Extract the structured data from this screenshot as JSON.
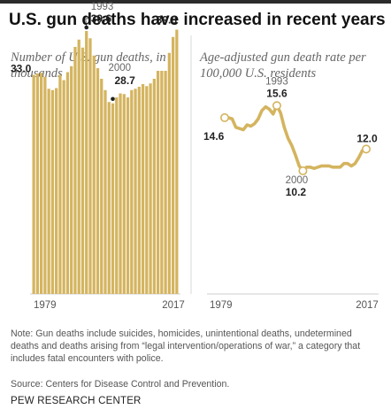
{
  "title": "U.S. gun deaths have increased in recent years",
  "note": "Note: Gun deaths include suicides, homicides, unintentional deaths, undetermined deaths and deaths arising from “legal intervention/operations of war,” a category that includes fatal encounters with police.",
  "source": "Source: Centers for Disease Control and Prevention.",
  "organization": "PEW RESEARCH CENTER",
  "colors": {
    "accent": "#d4b45f",
    "title": "#111111",
    "muted": "#666666"
  },
  "chart_data": [
    {
      "type": "bar",
      "subtitle": "Number of U.S. gun deaths, in thousands",
      "x": [
        1979,
        1980,
        1981,
        1982,
        1983,
        1984,
        1985,
        1986,
        1987,
        1988,
        1989,
        1990,
        1991,
        1992,
        1993,
        1994,
        1995,
        1996,
        1997,
        1998,
        1999,
        2000,
        2001,
        2002,
        2003,
        2004,
        2005,
        2006,
        2007,
        2008,
        2009,
        2010,
        2011,
        2012,
        2013,
        2014,
        2015,
        2016,
        2017
      ],
      "values": [
        33.0,
        33.2,
        33.3,
        32.7,
        30.9,
        30.7,
        31.0,
        33.0,
        32.2,
        33.4,
        34.3,
        37.2,
        38.3,
        37.1,
        39.6,
        38.5,
        35.9,
        34.0,
        32.4,
        30.7,
        28.9,
        28.7,
        29.6,
        30.2,
        30.1,
        29.6,
        30.7,
        30.9,
        31.2,
        31.6,
        31.3,
        31.7,
        32.4,
        33.6,
        33.6,
        33.6,
        36.3,
        38.7,
        39.8
      ],
      "xlim": [
        1979,
        2017
      ],
      "ylim": [
        0,
        40
      ],
      "tick_labels": [
        "1979",
        "2017"
      ],
      "annotations": [
        {
          "year": "",
          "label": "33.0",
          "x": 1979
        },
        {
          "year": "1993",
          "label": "39.6",
          "x": 1993
        },
        {
          "year": "2000",
          "label": "28.7",
          "x": 2000
        },
        {
          "year": "",
          "label": "39.8",
          "x": 2017
        }
      ]
    },
    {
      "type": "line",
      "subtitle": "Age-adjusted gun death rate per 100,000 U.S. residents",
      "x": [
        1979,
        1980,
        1981,
        1982,
        1983,
        1984,
        1985,
        1986,
        1987,
        1988,
        1989,
        1990,
        1991,
        1992,
        1993,
        1994,
        1995,
        1996,
        1997,
        1998,
        1999,
        2000,
        2001,
        2002,
        2003,
        2004,
        2005,
        2006,
        2007,
        2008,
        2009,
        2010,
        2011,
        2012,
        2013,
        2014,
        2015,
        2016,
        2017
      ],
      "values": [
        14.6,
        14.6,
        14.5,
        13.8,
        13.7,
        13.6,
        14.0,
        13.9,
        14.1,
        14.5,
        15.2,
        15.5,
        15.3,
        14.9,
        15.6,
        15.0,
        13.8,
        12.9,
        12.3,
        11.5,
        10.6,
        10.2,
        10.5,
        10.5,
        10.4,
        10.5,
        10.6,
        10.6,
        10.6,
        10.5,
        10.5,
        10.5,
        10.8,
        10.8,
        10.6,
        10.8,
        11.3,
        11.9,
        12.0
      ],
      "xlim": [
        1979,
        2017
      ],
      "ylim": [
        0,
        22
      ],
      "tick_labels": [
        "1979",
        "2017"
      ],
      "annotations": [
        {
          "year": "",
          "label": "14.6",
          "x": 1979
        },
        {
          "year": "1993",
          "label": "15.6",
          "x": 1993
        },
        {
          "year": "2000",
          "label": "10.2",
          "x": 2000
        },
        {
          "year": "",
          "label": "12.0",
          "x": 2017
        }
      ]
    }
  ]
}
